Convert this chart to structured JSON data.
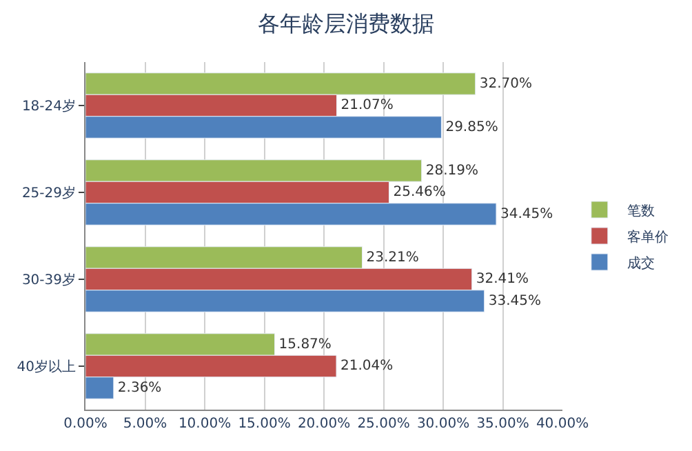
{
  "chart_data": {
    "type": "bar",
    "orientation": "horizontal",
    "title": "各年龄层消费数据",
    "categories": [
      "18-24岁",
      "25-29岁",
      "30-39岁",
      "40岁以上"
    ],
    "series": [
      {
        "name": "笔数",
        "color": "#9bbb59",
        "values": [
          32.7,
          28.19,
          23.21,
          15.87
        ],
        "value_labels": [
          "32.70%",
          "28.19%",
          "23.21%",
          "15.87%"
        ]
      },
      {
        "name": "客单价",
        "color": "#c0504d",
        "values": [
          21.07,
          25.46,
          32.41,
          21.04
        ],
        "value_labels": [
          "21.07%",
          "25.46%",
          "32.41%",
          "21.04%"
        ]
      },
      {
        "name": "成交",
        "color": "#4f81bd",
        "values": [
          29.85,
          34.45,
          33.45,
          2.36
        ],
        "value_labels": [
          "29.85%",
          "34.45%",
          "33.45%",
          "2.36%"
        ]
      }
    ],
    "xlim": [
      0,
      40
    ],
    "xticks": [
      {
        "value": 0,
        "label": "0.00%"
      },
      {
        "value": 5,
        "label": "5.00%"
      },
      {
        "value": 10,
        "label": "10.00%"
      },
      {
        "value": 15,
        "label": "15.00%"
      },
      {
        "value": 20,
        "label": "20.00%"
      },
      {
        "value": 25,
        "label": "25.00%"
      },
      {
        "value": 30,
        "label": "30.00%"
      },
      {
        "value": 35,
        "label": "35.00%"
      },
      {
        "value": 40,
        "label": "40.00%"
      }
    ],
    "grid": "x",
    "legend": "right"
  }
}
